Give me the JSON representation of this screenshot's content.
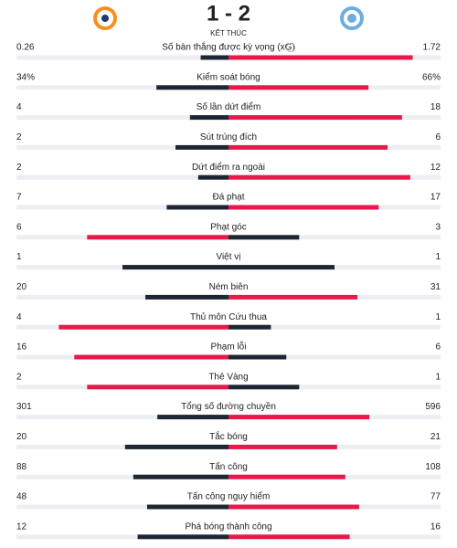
{
  "header": {
    "score": "1 - 2",
    "status": "KẾT THÚC"
  },
  "stats": [
    {
      "label": "Số bàn thắng được kỳ vọng (xG)",
      "home": 0.26,
      "away": 1.72
    },
    {
      "label": "Kiểm soát bóng",
      "home": 34,
      "away": 66,
      "home_label": "34%",
      "away_label": "66%"
    },
    {
      "label": "Số lần dứt điểm",
      "home": 4,
      "away": 18
    },
    {
      "label": "Sút trúng đích",
      "home": 2,
      "away": 6
    },
    {
      "label": "Dứt điểm ra ngoài",
      "home": 2,
      "away": 12
    },
    {
      "label": "Đá phạt",
      "home": 7,
      "away": 17
    },
    {
      "label": "Phạt góc",
      "home": 6,
      "away": 3
    },
    {
      "label": "Việt vị",
      "home": 1,
      "away": 1
    },
    {
      "label": "Ném biên",
      "home": 20,
      "away": 31
    },
    {
      "label": "Thủ môn Cứu thua",
      "home": 4,
      "away": 1
    },
    {
      "label": "Phạm lỗi",
      "home": 16,
      "away": 6
    },
    {
      "label": "Thẻ Vàng",
      "home": 2,
      "away": 1
    },
    {
      "label": "Tổng số đường chuyền",
      "home": 301,
      "away": 596
    },
    {
      "label": "Tắc bóng",
      "home": 20,
      "away": 21
    },
    {
      "label": "Tấn công",
      "home": 88,
      "away": 108
    },
    {
      "label": "Tấn công nguy hiểm",
      "home": 48,
      "away": 77
    },
    {
      "label": "Phá bóng thành công",
      "home": 12,
      "away": 16
    }
  ]
}
